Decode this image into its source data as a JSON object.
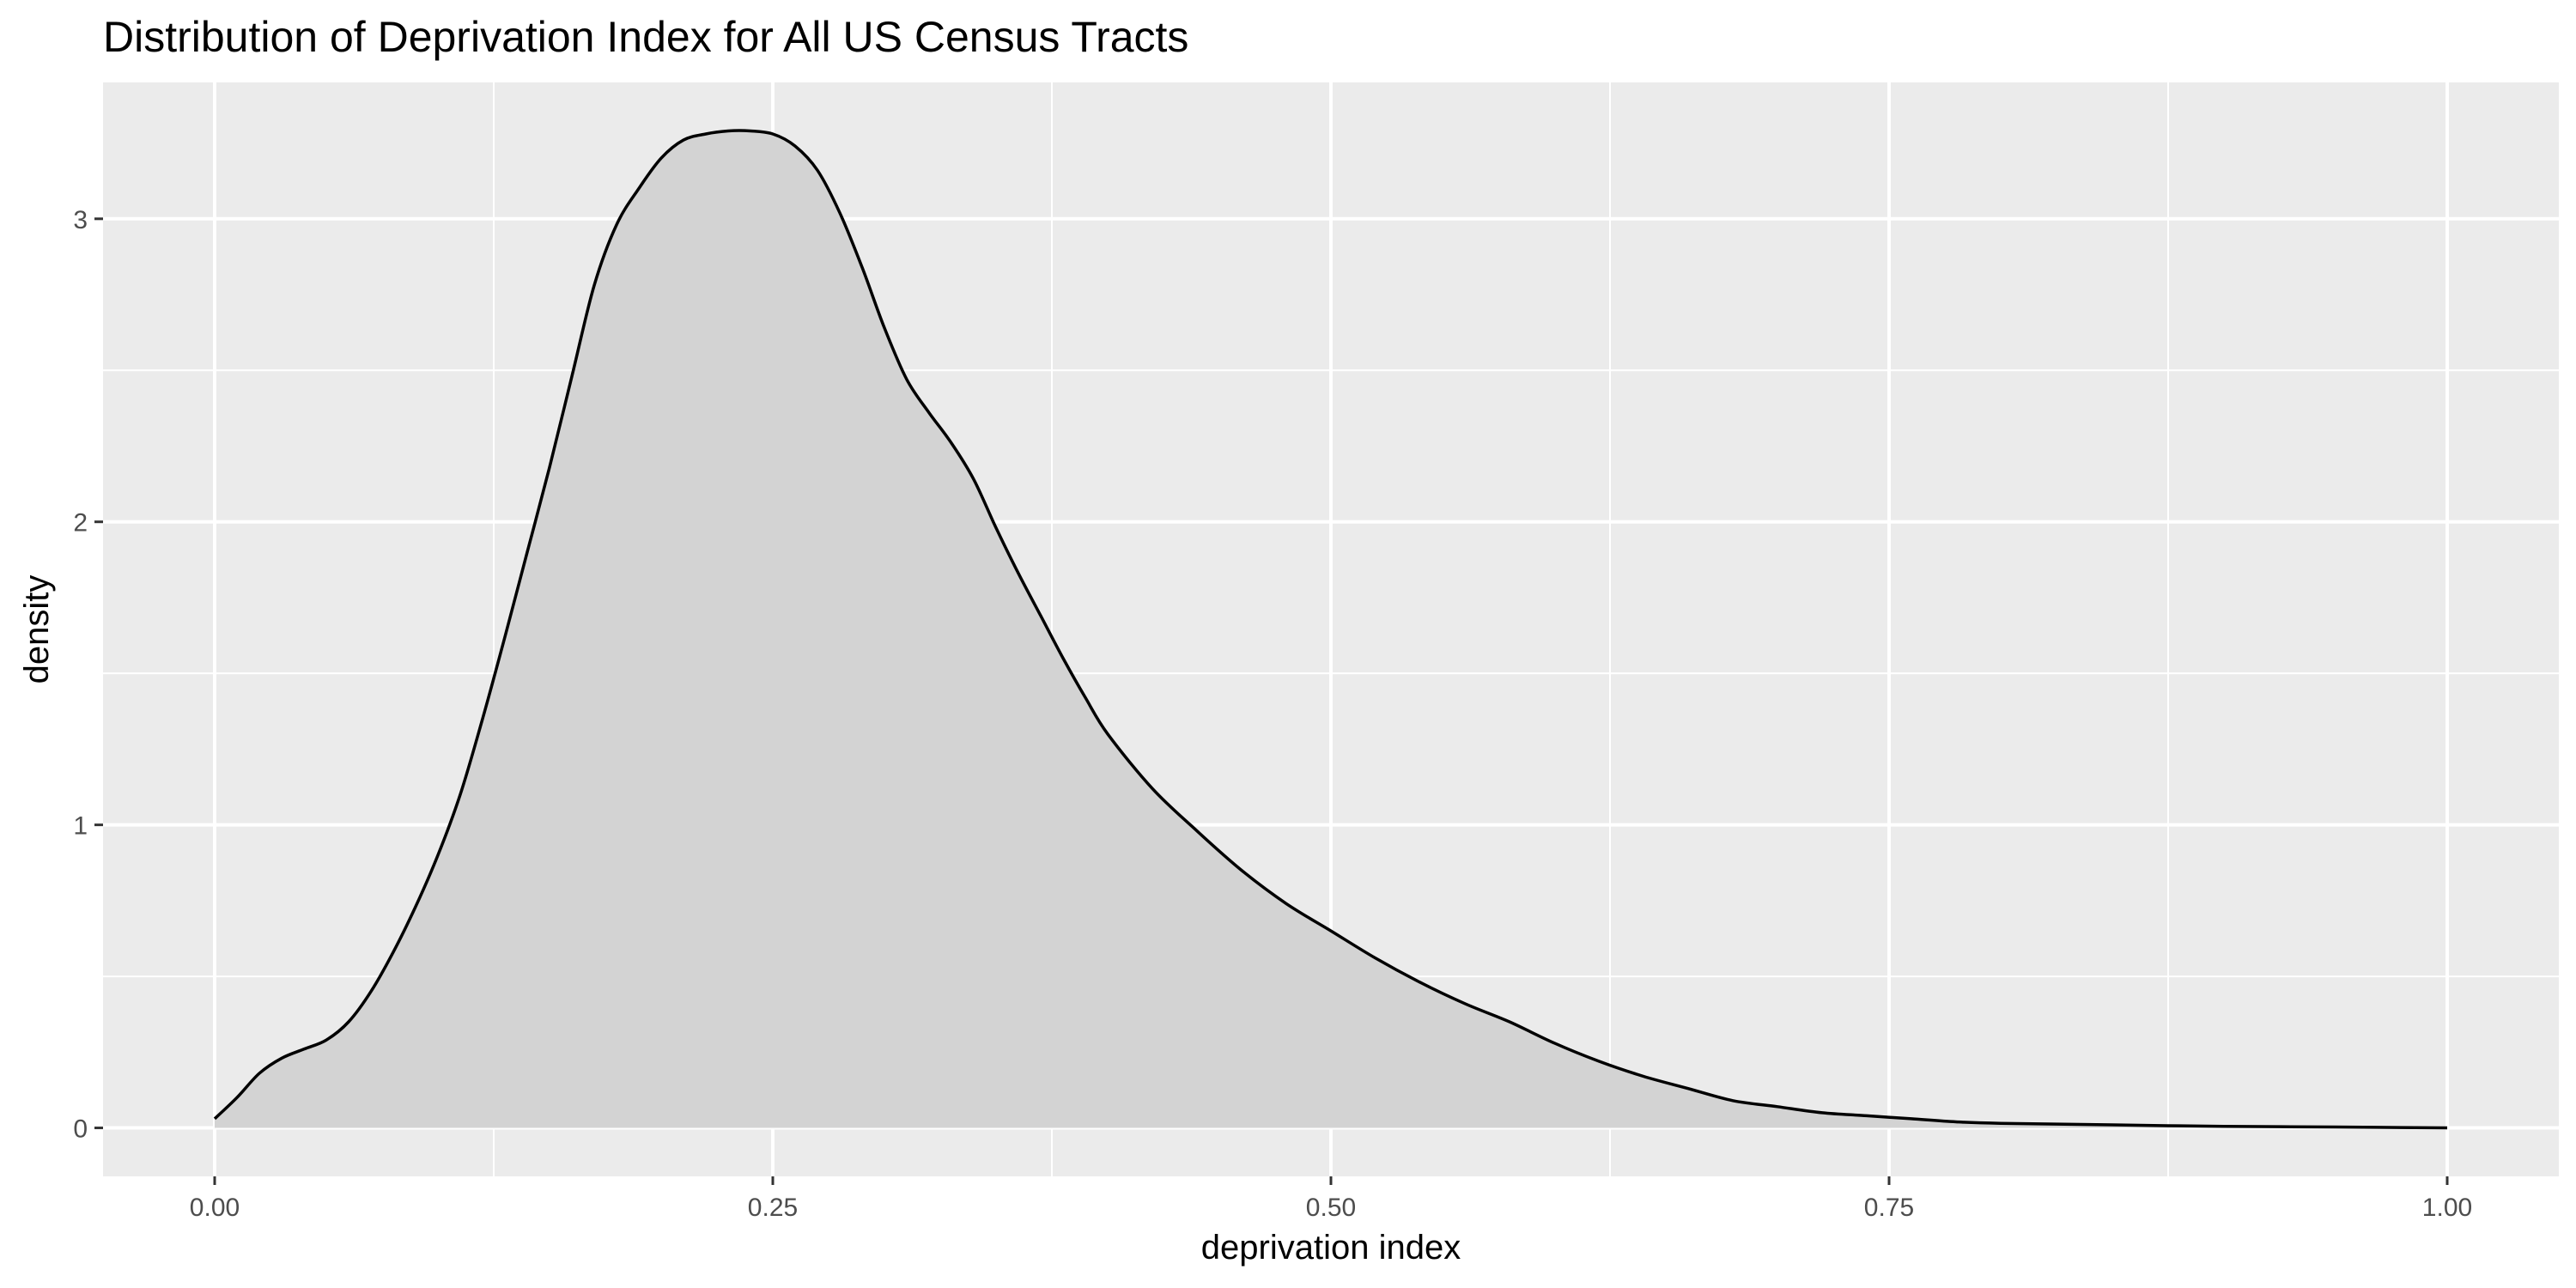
{
  "chart_data": {
    "type": "area",
    "title": "Distribution of Deprivation Index for All US Census Tracts",
    "xlabel": "deprivation index",
    "ylabel": "density",
    "xlim": [
      -0.05,
      1.05
    ],
    "ylim": [
      -0.16,
      3.45
    ],
    "x_ticks": [
      0.0,
      0.25,
      0.5,
      0.75,
      1.0
    ],
    "x_tick_labels": [
      "0.00",
      "0.25",
      "0.50",
      "0.75",
      "1.00"
    ],
    "y_ticks": [
      0,
      1,
      2,
      3
    ],
    "y_tick_labels": [
      "0",
      "1",
      "2",
      "3"
    ],
    "x_minor_ticks": [
      0.125,
      0.375,
      0.625,
      0.875
    ],
    "y_minor_ticks": [
      0.5,
      1.5,
      2.5
    ],
    "grid": true,
    "panel_color": "#ebebeb",
    "grid_color": "#ffffff",
    "fill_color": "#d3d3d3",
    "line_color": "#000000",
    "series": [
      {
        "x": [
          0.0,
          0.01,
          0.02,
          0.03,
          0.04,
          0.05,
          0.06,
          0.07,
          0.08,
          0.09,
          0.1,
          0.11,
          0.12,
          0.13,
          0.14,
          0.15,
          0.16,
          0.17,
          0.18,
          0.19,
          0.2,
          0.21,
          0.22,
          0.23,
          0.24,
          0.25,
          0.26,
          0.27,
          0.28,
          0.29,
          0.3,
          0.31,
          0.32,
          0.33,
          0.34,
          0.35,
          0.36,
          0.37,
          0.38,
          0.39,
          0.4,
          0.42,
          0.44,
          0.46,
          0.48,
          0.5,
          0.52,
          0.54,
          0.56,
          0.58,
          0.6,
          0.62,
          0.64,
          0.66,
          0.68,
          0.7,
          0.72,
          0.74,
          0.76,
          0.78,
          0.8,
          0.85,
          0.9,
          0.95,
          1.0
        ],
        "y": [
          0.03,
          0.1,
          0.18,
          0.23,
          0.26,
          0.29,
          0.35,
          0.45,
          0.58,
          0.73,
          0.9,
          1.1,
          1.35,
          1.62,
          1.9,
          2.18,
          2.48,
          2.78,
          2.98,
          3.1,
          3.2,
          3.26,
          3.28,
          3.29,
          3.29,
          3.28,
          3.24,
          3.16,
          3.02,
          2.84,
          2.64,
          2.47,
          2.36,
          2.26,
          2.14,
          1.98,
          1.83,
          1.69,
          1.55,
          1.42,
          1.3,
          1.12,
          0.98,
          0.85,
          0.74,
          0.65,
          0.56,
          0.48,
          0.41,
          0.35,
          0.28,
          0.22,
          0.17,
          0.13,
          0.09,
          0.07,
          0.05,
          0.04,
          0.03,
          0.02,
          0.015,
          0.01,
          0.005,
          0.003,
          0.0
        ]
      }
    ]
  }
}
